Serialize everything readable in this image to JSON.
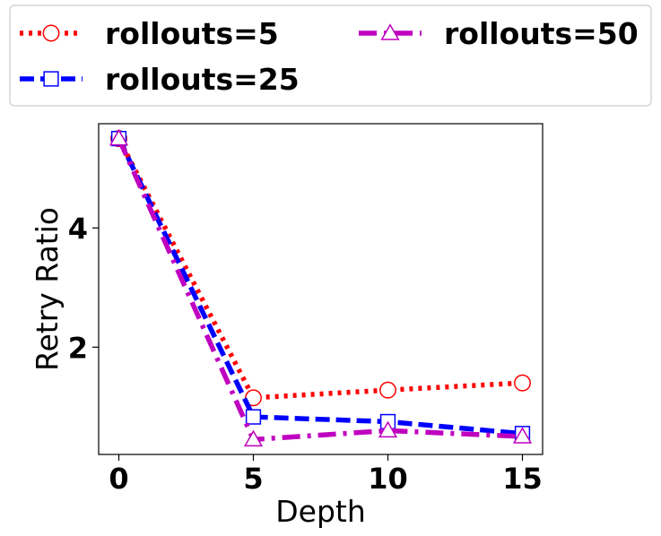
{
  "chart_data": {
    "type": "line",
    "title": "",
    "xlabel": "Depth",
    "ylabel": "Retry Ratio",
    "x": [
      0,
      5,
      10,
      15
    ],
    "xticks": [
      0,
      5,
      10,
      15
    ],
    "yticks": [
      2,
      4
    ],
    "xlim": [
      -0.75,
      15.75
    ],
    "ylim": [
      0.2,
      5.75
    ],
    "grid": false,
    "legend_position": "top",
    "series": [
      {
        "name": "rollouts=5",
        "values": [
          5.5,
          1.15,
          1.28,
          1.4
        ],
        "color": "#ff0000",
        "marker": "circle",
        "linestyle": "dotted"
      },
      {
        "name": "rollouts=25",
        "values": [
          5.5,
          0.83,
          0.75,
          0.55
        ],
        "color": "#0000ff",
        "marker": "square",
        "linestyle": "dashed"
      },
      {
        "name": "rollouts=50",
        "values": [
          5.5,
          0.45,
          0.6,
          0.5
        ],
        "color": "#bf00bf",
        "marker": "triangle",
        "linestyle": "dashdot"
      }
    ]
  }
}
